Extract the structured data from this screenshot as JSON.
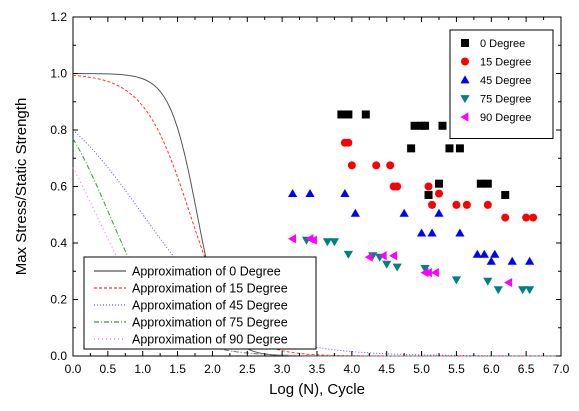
{
  "chart_data": {
    "type": "scatter",
    "title": "",
    "xlabel": "Log (N), Cycle",
    "ylabel": "Max Stress/Static Strength",
    "xlim": [
      0.0,
      7.0
    ],
    "ylim": [
      0.0,
      1.2
    ],
    "xticks": [
      "0.0",
      "0.5",
      "1.0",
      "1.5",
      "2.0",
      "2.5",
      "3.0",
      "3.5",
      "4.0",
      "4.5",
      "5.0",
      "5.5",
      "6.0",
      "6.5",
      "7.0"
    ],
    "yticks": [
      "0.0",
      "0.2",
      "0.4",
      "0.6",
      "0.8",
      "1.0",
      "1.2"
    ],
    "grid": false,
    "series": [
      {
        "name": "0  Degree",
        "marker": "square",
        "color": "#000000",
        "points": [
          [
            3.85,
            0.855
          ],
          [
            3.95,
            0.855
          ],
          [
            4.2,
            0.855
          ],
          [
            4.85,
            0.735
          ],
          [
            4.9,
            0.815
          ],
          [
            5.0,
            0.815
          ],
          [
            5.05,
            0.815
          ],
          [
            5.1,
            0.57
          ],
          [
            5.25,
            0.61
          ],
          [
            5.3,
            0.815
          ],
          [
            5.4,
            0.735
          ],
          [
            5.55,
            0.735
          ],
          [
            5.85,
            0.61
          ],
          [
            5.95,
            0.61
          ],
          [
            6.2,
            0.57
          ]
        ]
      },
      {
        "name": "15 Degree",
        "marker": "circle",
        "color": "#ff0000",
        "points": [
          [
            3.9,
            0.755
          ],
          [
            3.95,
            0.755
          ],
          [
            4.0,
            0.675
          ],
          [
            4.35,
            0.675
          ],
          [
            4.55,
            0.675
          ],
          [
            4.6,
            0.6
          ],
          [
            4.65,
            0.6
          ],
          [
            5.1,
            0.6
          ],
          [
            5.15,
            0.535
          ],
          [
            5.25,
            0.575
          ],
          [
            5.5,
            0.535
          ],
          [
            5.65,
            0.535
          ],
          [
            5.95,
            0.535
          ],
          [
            6.2,
            0.49
          ],
          [
            6.5,
            0.49
          ],
          [
            6.6,
            0.49
          ]
        ]
      },
      {
        "name": "45 Degree",
        "marker": "triangle-up",
        "color": "#0000ff",
        "points": [
          [
            3.15,
            0.575
          ],
          [
            3.4,
            0.575
          ],
          [
            3.9,
            0.575
          ],
          [
            4.05,
            0.505
          ],
          [
            4.75,
            0.505
          ],
          [
            5.0,
            0.435
          ],
          [
            5.15,
            0.435
          ],
          [
            5.25,
            0.505
          ],
          [
            5.55,
            0.435
          ],
          [
            5.8,
            0.36
          ],
          [
            5.9,
            0.36
          ],
          [
            6.0,
            0.335
          ],
          [
            6.05,
            0.36
          ],
          [
            6.3,
            0.335
          ],
          [
            6.55,
            0.335
          ]
        ]
      },
      {
        "name": "75 Degree",
        "marker": "triangle-down",
        "color": "#008080",
        "points": [
          [
            3.35,
            0.41
          ],
          [
            3.65,
            0.405
          ],
          [
            3.75,
            0.405
          ],
          [
            3.95,
            0.36
          ],
          [
            4.3,
            0.355
          ],
          [
            4.4,
            0.35
          ],
          [
            4.5,
            0.325
          ],
          [
            4.65,
            0.315
          ],
          [
            5.05,
            0.31
          ],
          [
            5.5,
            0.27
          ],
          [
            5.95,
            0.265
          ],
          [
            6.1,
            0.235
          ],
          [
            6.45,
            0.235
          ],
          [
            6.55,
            0.235
          ]
        ]
      },
      {
        "name": "90 Degree",
        "marker": "triangle-left",
        "color": "#ff00ff",
        "points": [
          [
            3.15,
            0.415
          ],
          [
            3.4,
            0.415
          ],
          [
            3.45,
            0.41
          ],
          [
            4.25,
            0.35
          ],
          [
            4.45,
            0.355
          ],
          [
            4.6,
            0.355
          ],
          [
            5.05,
            0.295
          ],
          [
            5.1,
            0.295
          ],
          [
            5.2,
            0.295
          ],
          [
            6.25,
            0.26
          ]
        ]
      }
    ],
    "approximations": [
      {
        "name": "Approximation of  0  Degree",
        "color": "#555555",
        "dash": "",
        "k": 0.00012,
        "n": 2.2
      },
      {
        "name": "Approximation of 15 Degree",
        "color": "#ff3333",
        "dash": "3,2",
        "k": 0.0065,
        "n": 1.3
      },
      {
        "name": "Approximation of 45 Degree",
        "color": "#5555ff",
        "dash": "1,2",
        "k": 0.25,
        "n": 0.6
      },
      {
        "name": "Approximation of 75 Degree",
        "color": "#339933",
        "dash": "5,2,1,2",
        "k": 0.3,
        "n": 1.0
      },
      {
        "name": "Approximation of 90 Degree",
        "color": "#ff66ff",
        "dash": "1,3",
        "k": 0.5,
        "n": 0.9
      }
    ],
    "legend_scatter_position": "top-right",
    "legend_lines_position": "bottom-left"
  }
}
